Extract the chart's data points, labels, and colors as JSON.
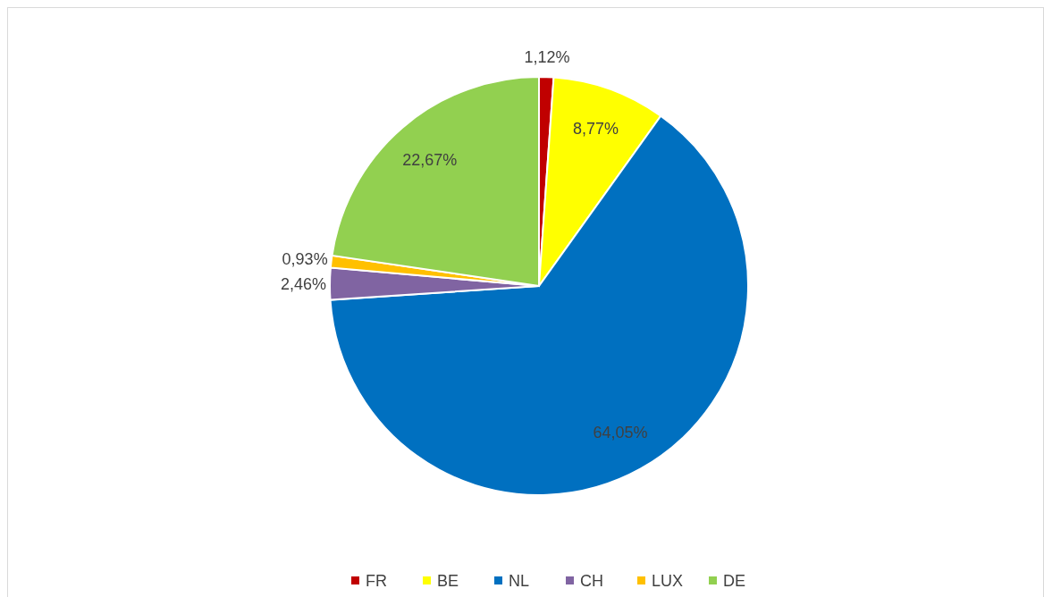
{
  "chart_data": {
    "type": "pie",
    "categories": [
      "FR",
      "BE",
      "NL",
      "CH",
      "LUX",
      "DE"
    ],
    "values": [
      1.12,
      8.77,
      64.05,
      2.46,
      0.93,
      22.67
    ],
    "colors": [
      "#c00000",
      "#ffff00",
      "#0070c0",
      "#8064a2",
      "#ffc000",
      "#92d050"
    ],
    "value_labels": [
      "1,12%",
      "8,77%",
      "64,05%",
      "2,46%",
      "0,93%",
      "22,67%"
    ],
    "legend": "bottom"
  }
}
